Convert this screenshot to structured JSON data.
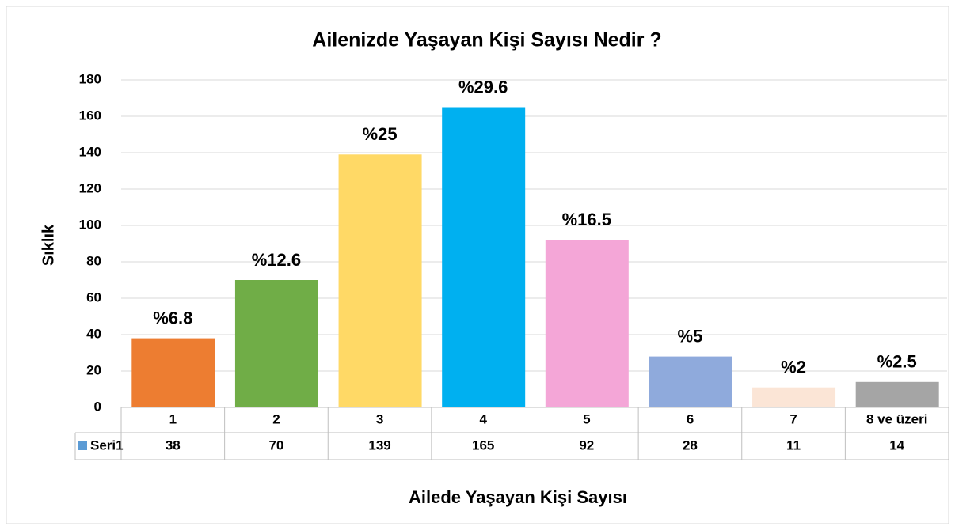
{
  "chart_data": {
    "type": "bar",
    "title": "Ailenizde Yaşayan Kişi Sayısı Nedir ?",
    "y_label": "Sıklık",
    "x_label": "Ailede Yaşayan Kişi Sayısı",
    "categories": [
      "1",
      "2",
      "3",
      "4",
      "5",
      "6",
      "7",
      "8 ve üzeri"
    ],
    "series": [
      {
        "name": "Seri1",
        "color": "#5b9bd5",
        "values": [
          38,
          70,
          139,
          165,
          92,
          28,
          11,
          14
        ]
      }
    ],
    "colors": [
      "#ed7d31",
      "#70ad47",
      "#ffd966",
      "#00b0f0",
      "#f4a6d7",
      "#8faadc",
      "#fbe5d6",
      "#a5a5a5"
    ],
    "percentages": {
      "values": [
        6.8,
        12.6,
        25,
        29.6,
        16.5,
        5,
        2,
        2.5
      ],
      "value_labels": [
        "%6.8",
        "%12.6",
        "%25",
        "%29.6",
        "%16.5",
        "%5",
        "%2",
        "%2.5"
      ]
    },
    "ylim": [
      0,
      180
    ],
    "yticks": [
      0,
      20,
      40,
      60,
      80,
      100,
      120,
      140,
      160,
      180
    ],
    "grid": true,
    "data_table": true
  }
}
